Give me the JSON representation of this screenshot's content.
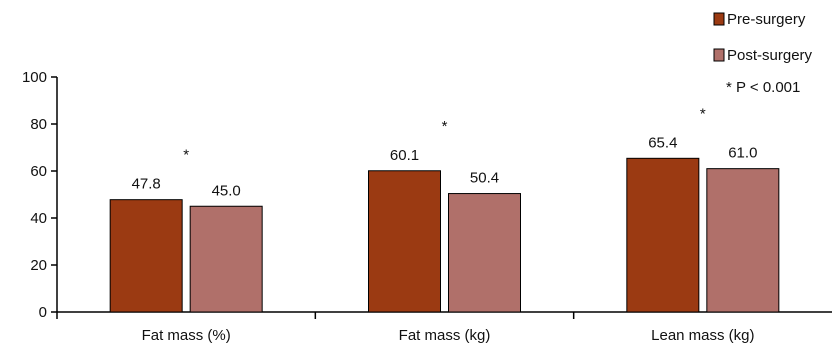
{
  "chart_data": {
    "type": "bar",
    "title": "",
    "xlabel": "",
    "ylabel": "",
    "categories": [
      "Fat mass (%)",
      "Fat mass (kg)",
      "Lean mass (kg)"
    ],
    "series": [
      {
        "name": "Pre-surgery",
        "values": [
          47.8,
          60.1,
          65.4
        ],
        "labels": [
          "47.8",
          "60.1",
          "65.4"
        ],
        "color": "#9b3a12"
      },
      {
        "name": "Post-surgery",
        "values": [
          45.0,
          50.4,
          61.0
        ],
        "labels": [
          "45.0",
          "50.4",
          "61.0"
        ],
        "color": "#b0706a"
      }
    ],
    "significance": [
      "*",
      "*",
      "*"
    ],
    "significance_note": "* P < 0.001",
    "ylim": [
      0,
      100
    ],
    "yticks": [
      "0",
      "20",
      "40",
      "60",
      "80",
      "100"
    ],
    "grid": false,
    "legend_position": "top-right"
  }
}
